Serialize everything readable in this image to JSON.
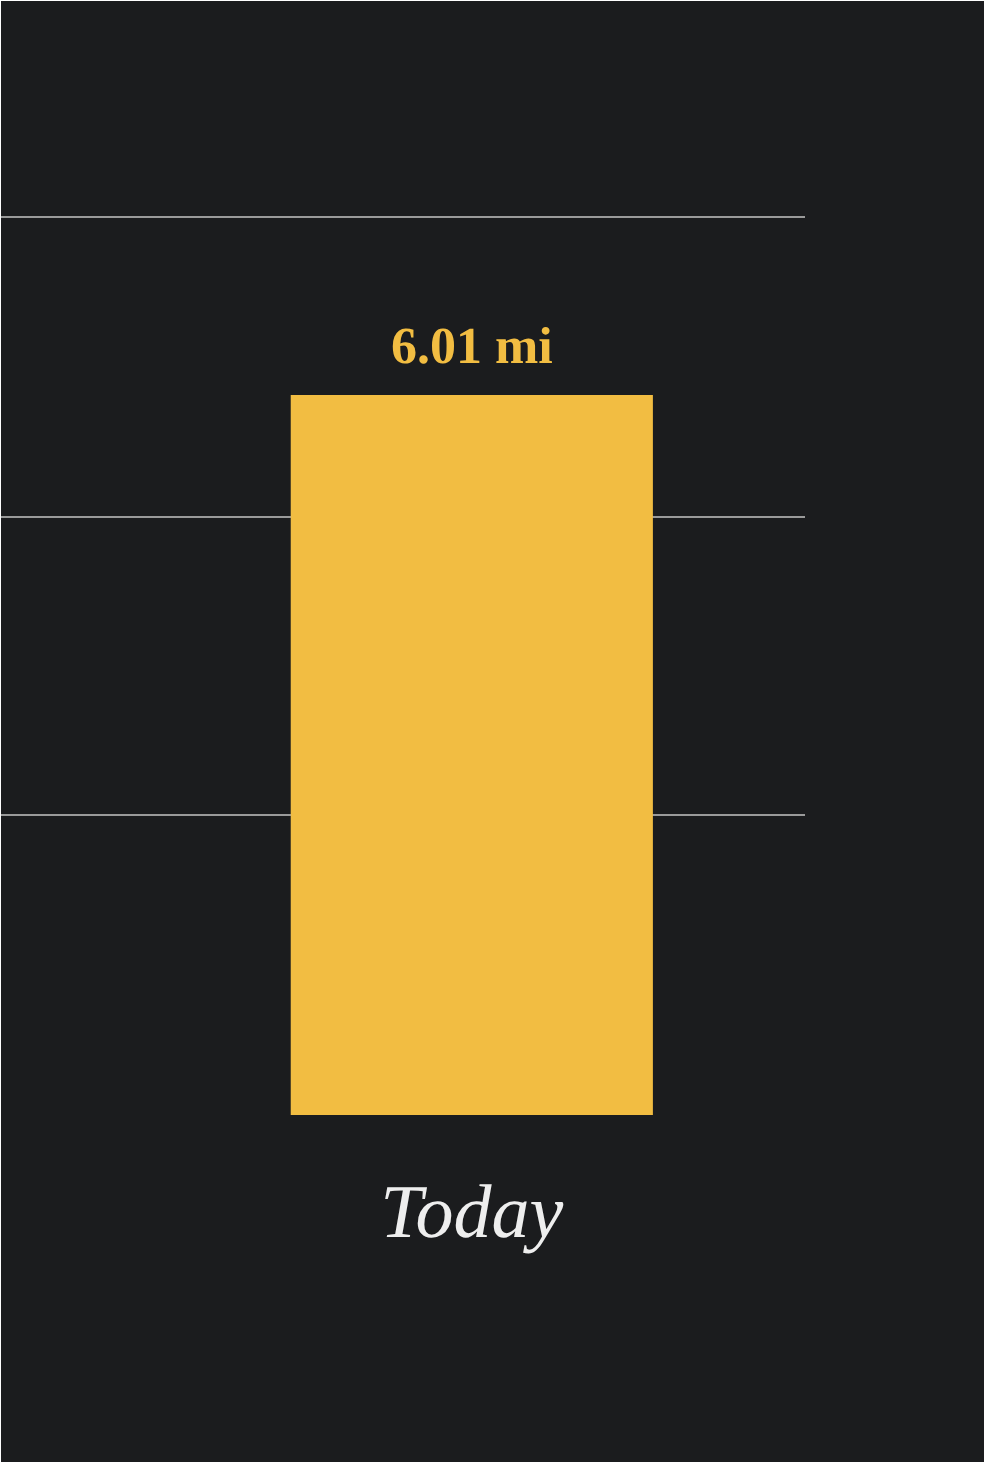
{
  "chart_data": {
    "type": "bar",
    "categories": [
      "Today"
    ],
    "values": [
      6.01
    ],
    "value_labels": [
      "6.01 mi"
    ],
    "color": "#f2bd42",
    "ylim": [
      0,
      9.3
    ],
    "yticks": [
      {
        "value": 2.5,
        "label": null
      },
      {
        "value": 5,
        "label": null
      },
      {
        "value": 7.5,
        "label": null
      }
    ],
    "grid": "y",
    "tick_labels": "x"
  }
}
